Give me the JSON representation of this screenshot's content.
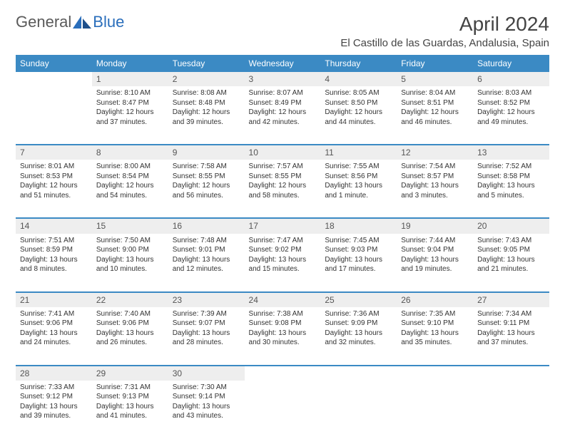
{
  "logo": {
    "text1": "General",
    "text2": "Blue"
  },
  "title": "April 2024",
  "location": "El Castillo de las Guardas, Andalusia, Spain",
  "dayHeaders": [
    "Sunday",
    "Monday",
    "Tuesday",
    "Wednesday",
    "Thursday",
    "Friday",
    "Saturday"
  ],
  "colors": {
    "headerBg": "#3b8ac4",
    "headerText": "#ffffff",
    "daynumBg": "#eeeeee",
    "borderColor": "#3b8ac4",
    "textColor": "#333333",
    "logoGray": "#5a5a5a",
    "logoBlue": "#2a6ebb"
  },
  "weeks": [
    [
      null,
      {
        "n": "1",
        "sr": "Sunrise: 8:10 AM",
        "ss": "Sunset: 8:47 PM",
        "d1": "Daylight: 12 hours",
        "d2": "and 37 minutes."
      },
      {
        "n": "2",
        "sr": "Sunrise: 8:08 AM",
        "ss": "Sunset: 8:48 PM",
        "d1": "Daylight: 12 hours",
        "d2": "and 39 minutes."
      },
      {
        "n": "3",
        "sr": "Sunrise: 8:07 AM",
        "ss": "Sunset: 8:49 PM",
        "d1": "Daylight: 12 hours",
        "d2": "and 42 minutes."
      },
      {
        "n": "4",
        "sr": "Sunrise: 8:05 AM",
        "ss": "Sunset: 8:50 PM",
        "d1": "Daylight: 12 hours",
        "d2": "and 44 minutes."
      },
      {
        "n": "5",
        "sr": "Sunrise: 8:04 AM",
        "ss": "Sunset: 8:51 PM",
        "d1": "Daylight: 12 hours",
        "d2": "and 46 minutes."
      },
      {
        "n": "6",
        "sr": "Sunrise: 8:03 AM",
        "ss": "Sunset: 8:52 PM",
        "d1": "Daylight: 12 hours",
        "d2": "and 49 minutes."
      }
    ],
    [
      {
        "n": "7",
        "sr": "Sunrise: 8:01 AM",
        "ss": "Sunset: 8:53 PM",
        "d1": "Daylight: 12 hours",
        "d2": "and 51 minutes."
      },
      {
        "n": "8",
        "sr": "Sunrise: 8:00 AM",
        "ss": "Sunset: 8:54 PM",
        "d1": "Daylight: 12 hours",
        "d2": "and 54 minutes."
      },
      {
        "n": "9",
        "sr": "Sunrise: 7:58 AM",
        "ss": "Sunset: 8:55 PM",
        "d1": "Daylight: 12 hours",
        "d2": "and 56 minutes."
      },
      {
        "n": "10",
        "sr": "Sunrise: 7:57 AM",
        "ss": "Sunset: 8:55 PM",
        "d1": "Daylight: 12 hours",
        "d2": "and 58 minutes."
      },
      {
        "n": "11",
        "sr": "Sunrise: 7:55 AM",
        "ss": "Sunset: 8:56 PM",
        "d1": "Daylight: 13 hours",
        "d2": "and 1 minute."
      },
      {
        "n": "12",
        "sr": "Sunrise: 7:54 AM",
        "ss": "Sunset: 8:57 PM",
        "d1": "Daylight: 13 hours",
        "d2": "and 3 minutes."
      },
      {
        "n": "13",
        "sr": "Sunrise: 7:52 AM",
        "ss": "Sunset: 8:58 PM",
        "d1": "Daylight: 13 hours",
        "d2": "and 5 minutes."
      }
    ],
    [
      {
        "n": "14",
        "sr": "Sunrise: 7:51 AM",
        "ss": "Sunset: 8:59 PM",
        "d1": "Daylight: 13 hours",
        "d2": "and 8 minutes."
      },
      {
        "n": "15",
        "sr": "Sunrise: 7:50 AM",
        "ss": "Sunset: 9:00 PM",
        "d1": "Daylight: 13 hours",
        "d2": "and 10 minutes."
      },
      {
        "n": "16",
        "sr": "Sunrise: 7:48 AM",
        "ss": "Sunset: 9:01 PM",
        "d1": "Daylight: 13 hours",
        "d2": "and 12 minutes."
      },
      {
        "n": "17",
        "sr": "Sunrise: 7:47 AM",
        "ss": "Sunset: 9:02 PM",
        "d1": "Daylight: 13 hours",
        "d2": "and 15 minutes."
      },
      {
        "n": "18",
        "sr": "Sunrise: 7:45 AM",
        "ss": "Sunset: 9:03 PM",
        "d1": "Daylight: 13 hours",
        "d2": "and 17 minutes."
      },
      {
        "n": "19",
        "sr": "Sunrise: 7:44 AM",
        "ss": "Sunset: 9:04 PM",
        "d1": "Daylight: 13 hours",
        "d2": "and 19 minutes."
      },
      {
        "n": "20",
        "sr": "Sunrise: 7:43 AM",
        "ss": "Sunset: 9:05 PM",
        "d1": "Daylight: 13 hours",
        "d2": "and 21 minutes."
      }
    ],
    [
      {
        "n": "21",
        "sr": "Sunrise: 7:41 AM",
        "ss": "Sunset: 9:06 PM",
        "d1": "Daylight: 13 hours",
        "d2": "and 24 minutes."
      },
      {
        "n": "22",
        "sr": "Sunrise: 7:40 AM",
        "ss": "Sunset: 9:06 PM",
        "d1": "Daylight: 13 hours",
        "d2": "and 26 minutes."
      },
      {
        "n": "23",
        "sr": "Sunrise: 7:39 AM",
        "ss": "Sunset: 9:07 PM",
        "d1": "Daylight: 13 hours",
        "d2": "and 28 minutes."
      },
      {
        "n": "24",
        "sr": "Sunrise: 7:38 AM",
        "ss": "Sunset: 9:08 PM",
        "d1": "Daylight: 13 hours",
        "d2": "and 30 minutes."
      },
      {
        "n": "25",
        "sr": "Sunrise: 7:36 AM",
        "ss": "Sunset: 9:09 PM",
        "d1": "Daylight: 13 hours",
        "d2": "and 32 minutes."
      },
      {
        "n": "26",
        "sr": "Sunrise: 7:35 AM",
        "ss": "Sunset: 9:10 PM",
        "d1": "Daylight: 13 hours",
        "d2": "and 35 minutes."
      },
      {
        "n": "27",
        "sr": "Sunrise: 7:34 AM",
        "ss": "Sunset: 9:11 PM",
        "d1": "Daylight: 13 hours",
        "d2": "and 37 minutes."
      }
    ],
    [
      {
        "n": "28",
        "sr": "Sunrise: 7:33 AM",
        "ss": "Sunset: 9:12 PM",
        "d1": "Daylight: 13 hours",
        "d2": "and 39 minutes."
      },
      {
        "n": "29",
        "sr": "Sunrise: 7:31 AM",
        "ss": "Sunset: 9:13 PM",
        "d1": "Daylight: 13 hours",
        "d2": "and 41 minutes."
      },
      {
        "n": "30",
        "sr": "Sunrise: 7:30 AM",
        "ss": "Sunset: 9:14 PM",
        "d1": "Daylight: 13 hours",
        "d2": "and 43 minutes."
      },
      null,
      null,
      null,
      null
    ]
  ]
}
